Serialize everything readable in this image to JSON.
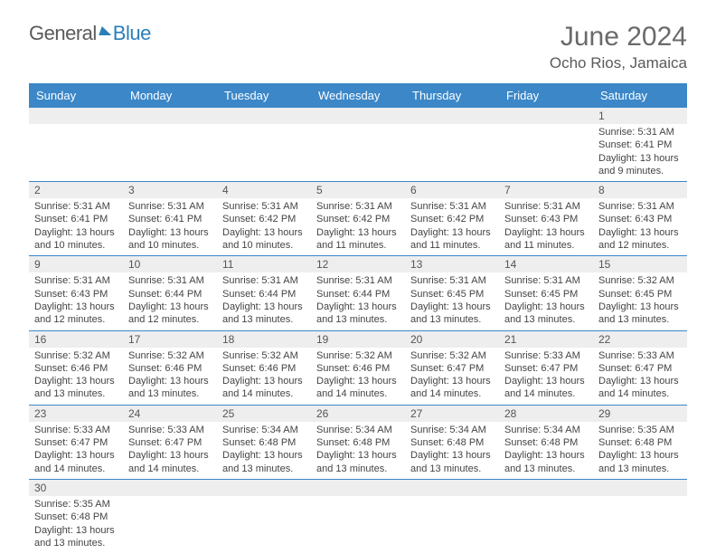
{
  "logo": {
    "text1": "General",
    "text2": "Blue"
  },
  "header": {
    "title": "June 2024",
    "location": "Ocho Rios, Jamaica"
  },
  "colors": {
    "header_bg": "#3b87c8",
    "header_text": "#ffffff",
    "daynum_bg": "#eeeeee",
    "row_border": "#3b87c8",
    "title_color": "#6a6a6a",
    "logo_gray": "#5a5a5a",
    "logo_blue": "#2a7fb8"
  },
  "dayNames": [
    "Sunday",
    "Monday",
    "Tuesday",
    "Wednesday",
    "Thursday",
    "Friday",
    "Saturday"
  ],
  "weeks": [
    [
      {
        "n": "",
        "sr": "",
        "ss": "",
        "dl": ""
      },
      {
        "n": "",
        "sr": "",
        "ss": "",
        "dl": ""
      },
      {
        "n": "",
        "sr": "",
        "ss": "",
        "dl": ""
      },
      {
        "n": "",
        "sr": "",
        "ss": "",
        "dl": ""
      },
      {
        "n": "",
        "sr": "",
        "ss": "",
        "dl": ""
      },
      {
        "n": "",
        "sr": "",
        "ss": "",
        "dl": ""
      },
      {
        "n": "1",
        "sr": "Sunrise: 5:31 AM",
        "ss": "Sunset: 6:41 PM",
        "dl": "Daylight: 13 hours and 9 minutes."
      }
    ],
    [
      {
        "n": "2",
        "sr": "Sunrise: 5:31 AM",
        "ss": "Sunset: 6:41 PM",
        "dl": "Daylight: 13 hours and 10 minutes."
      },
      {
        "n": "3",
        "sr": "Sunrise: 5:31 AM",
        "ss": "Sunset: 6:41 PM",
        "dl": "Daylight: 13 hours and 10 minutes."
      },
      {
        "n": "4",
        "sr": "Sunrise: 5:31 AM",
        "ss": "Sunset: 6:42 PM",
        "dl": "Daylight: 13 hours and 10 minutes."
      },
      {
        "n": "5",
        "sr": "Sunrise: 5:31 AM",
        "ss": "Sunset: 6:42 PM",
        "dl": "Daylight: 13 hours and 11 minutes."
      },
      {
        "n": "6",
        "sr": "Sunrise: 5:31 AM",
        "ss": "Sunset: 6:42 PM",
        "dl": "Daylight: 13 hours and 11 minutes."
      },
      {
        "n": "7",
        "sr": "Sunrise: 5:31 AM",
        "ss": "Sunset: 6:43 PM",
        "dl": "Daylight: 13 hours and 11 minutes."
      },
      {
        "n": "8",
        "sr": "Sunrise: 5:31 AM",
        "ss": "Sunset: 6:43 PM",
        "dl": "Daylight: 13 hours and 12 minutes."
      }
    ],
    [
      {
        "n": "9",
        "sr": "Sunrise: 5:31 AM",
        "ss": "Sunset: 6:43 PM",
        "dl": "Daylight: 13 hours and 12 minutes."
      },
      {
        "n": "10",
        "sr": "Sunrise: 5:31 AM",
        "ss": "Sunset: 6:44 PM",
        "dl": "Daylight: 13 hours and 12 minutes."
      },
      {
        "n": "11",
        "sr": "Sunrise: 5:31 AM",
        "ss": "Sunset: 6:44 PM",
        "dl": "Daylight: 13 hours and 13 minutes."
      },
      {
        "n": "12",
        "sr": "Sunrise: 5:31 AM",
        "ss": "Sunset: 6:44 PM",
        "dl": "Daylight: 13 hours and 13 minutes."
      },
      {
        "n": "13",
        "sr": "Sunrise: 5:31 AM",
        "ss": "Sunset: 6:45 PM",
        "dl": "Daylight: 13 hours and 13 minutes."
      },
      {
        "n": "14",
        "sr": "Sunrise: 5:31 AM",
        "ss": "Sunset: 6:45 PM",
        "dl": "Daylight: 13 hours and 13 minutes."
      },
      {
        "n": "15",
        "sr": "Sunrise: 5:32 AM",
        "ss": "Sunset: 6:45 PM",
        "dl": "Daylight: 13 hours and 13 minutes."
      }
    ],
    [
      {
        "n": "16",
        "sr": "Sunrise: 5:32 AM",
        "ss": "Sunset: 6:46 PM",
        "dl": "Daylight: 13 hours and 13 minutes."
      },
      {
        "n": "17",
        "sr": "Sunrise: 5:32 AM",
        "ss": "Sunset: 6:46 PM",
        "dl": "Daylight: 13 hours and 13 minutes."
      },
      {
        "n": "18",
        "sr": "Sunrise: 5:32 AM",
        "ss": "Sunset: 6:46 PM",
        "dl": "Daylight: 13 hours and 14 minutes."
      },
      {
        "n": "19",
        "sr": "Sunrise: 5:32 AM",
        "ss": "Sunset: 6:46 PM",
        "dl": "Daylight: 13 hours and 14 minutes."
      },
      {
        "n": "20",
        "sr": "Sunrise: 5:32 AM",
        "ss": "Sunset: 6:47 PM",
        "dl": "Daylight: 13 hours and 14 minutes."
      },
      {
        "n": "21",
        "sr": "Sunrise: 5:33 AM",
        "ss": "Sunset: 6:47 PM",
        "dl": "Daylight: 13 hours and 14 minutes."
      },
      {
        "n": "22",
        "sr": "Sunrise: 5:33 AM",
        "ss": "Sunset: 6:47 PM",
        "dl": "Daylight: 13 hours and 14 minutes."
      }
    ],
    [
      {
        "n": "23",
        "sr": "Sunrise: 5:33 AM",
        "ss": "Sunset: 6:47 PM",
        "dl": "Daylight: 13 hours and 14 minutes."
      },
      {
        "n": "24",
        "sr": "Sunrise: 5:33 AM",
        "ss": "Sunset: 6:47 PM",
        "dl": "Daylight: 13 hours and 14 minutes."
      },
      {
        "n": "25",
        "sr": "Sunrise: 5:34 AM",
        "ss": "Sunset: 6:48 PM",
        "dl": "Daylight: 13 hours and 13 minutes."
      },
      {
        "n": "26",
        "sr": "Sunrise: 5:34 AM",
        "ss": "Sunset: 6:48 PM",
        "dl": "Daylight: 13 hours and 13 minutes."
      },
      {
        "n": "27",
        "sr": "Sunrise: 5:34 AM",
        "ss": "Sunset: 6:48 PM",
        "dl": "Daylight: 13 hours and 13 minutes."
      },
      {
        "n": "28",
        "sr": "Sunrise: 5:34 AM",
        "ss": "Sunset: 6:48 PM",
        "dl": "Daylight: 13 hours and 13 minutes."
      },
      {
        "n": "29",
        "sr": "Sunrise: 5:35 AM",
        "ss": "Sunset: 6:48 PM",
        "dl": "Daylight: 13 hours and 13 minutes."
      }
    ],
    [
      {
        "n": "30",
        "sr": "Sunrise: 5:35 AM",
        "ss": "Sunset: 6:48 PM",
        "dl": "Daylight: 13 hours and 13 minutes."
      },
      {
        "n": "",
        "sr": "",
        "ss": "",
        "dl": ""
      },
      {
        "n": "",
        "sr": "",
        "ss": "",
        "dl": ""
      },
      {
        "n": "",
        "sr": "",
        "ss": "",
        "dl": ""
      },
      {
        "n": "",
        "sr": "",
        "ss": "",
        "dl": ""
      },
      {
        "n": "",
        "sr": "",
        "ss": "",
        "dl": ""
      },
      {
        "n": "",
        "sr": "",
        "ss": "",
        "dl": ""
      }
    ]
  ]
}
